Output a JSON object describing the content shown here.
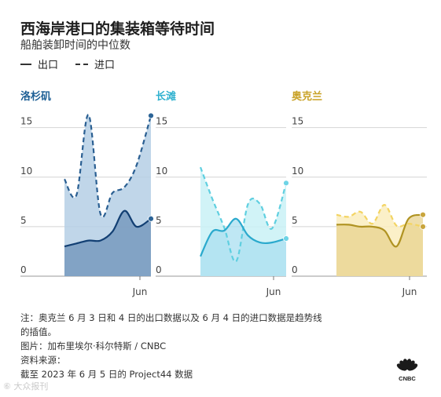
{
  "title": "西海岸港口的集装箱等待时间",
  "subtitle": "船舶装卸时间的中位数",
  "legend": {
    "export": "出口",
    "import": "进口"
  },
  "chart_data": [
    {
      "type": "area",
      "title": "洛杉矶",
      "color": "#1d5f95",
      "yticks": [
        "15",
        "10",
        "5",
        "0"
      ],
      "ylim": [
        0,
        16
      ],
      "xtick": "Jun",
      "x": [
        "2023-04-30",
        "2023-05-05",
        "2023-05-10",
        "2023-05-15",
        "2023-05-20",
        "2023-05-25",
        "2023-05-30",
        "2023-06-05"
      ],
      "series": [
        {
          "name": "出口",
          "values": [
            3.0,
            3.3,
            3.6,
            3.6,
            4.5,
            6.6,
            5.0,
            5.8
          ]
        },
        {
          "name": "进口",
          "values": [
            9.8,
            8.2,
            16.3,
            6.3,
            8.4,
            9.0,
            11.2,
            16.2
          ]
        }
      ]
    },
    {
      "type": "area",
      "title": "长滩",
      "color": "#2fb1cf",
      "yticks": [
        "15",
        "10",
        "5",
        "0"
      ],
      "ylim": [
        0,
        16
      ],
      "xtick": "Jun",
      "x": [
        "2023-04-30",
        "2023-05-05",
        "2023-05-10",
        "2023-05-15",
        "2023-05-20",
        "2023-05-25",
        "2023-05-30",
        "2023-06-05"
      ],
      "series": [
        {
          "name": "出口",
          "values": [
            2.0,
            4.5,
            4.6,
            5.8,
            4.1,
            3.4,
            3.4,
            3.8
          ]
        },
        {
          "name": "进口",
          "values": [
            11.0,
            7.8,
            4.9,
            1.5,
            7.3,
            7.3,
            4.8,
            9.4
          ]
        }
      ]
    },
    {
      "type": "area",
      "title": "奥克兰",
      "color": "#c9a227",
      "yticks": [
        "15",
        "10",
        "5",
        "0"
      ],
      "ylim": [
        0,
        16
      ],
      "xtick": "Jun",
      "x": [
        "2023-04-30",
        "2023-05-05",
        "2023-05-10",
        "2023-05-15",
        "2023-05-20",
        "2023-05-25",
        "2023-05-30",
        "2023-06-05"
      ],
      "series": [
        {
          "name": "出口",
          "values": [
            5.2,
            5.2,
            5.0,
            5.0,
            4.6,
            3.0,
            5.8,
            6.2
          ]
        },
        {
          "name": "进口",
          "values": [
            6.2,
            6.0,
            6.5,
            5.3,
            7.2,
            5.1,
            5.3,
            5.0
          ]
        }
      ]
    }
  ],
  "notes": {
    "line1": "注：奥克兰 6 月 3 日和 4 日的出口数据以及 6 月 4 日的进口数据是趋势线",
    "line2": "的插值。",
    "line3": "图片：加布里埃尔·科尔特斯 / CNBC",
    "line4": "资料来源：",
    "line5": "截至 2023 年 6 月 5 日的 Project44 数据"
  },
  "watermark": "⑥ 大众报刊",
  "logo_text": "CNBC"
}
